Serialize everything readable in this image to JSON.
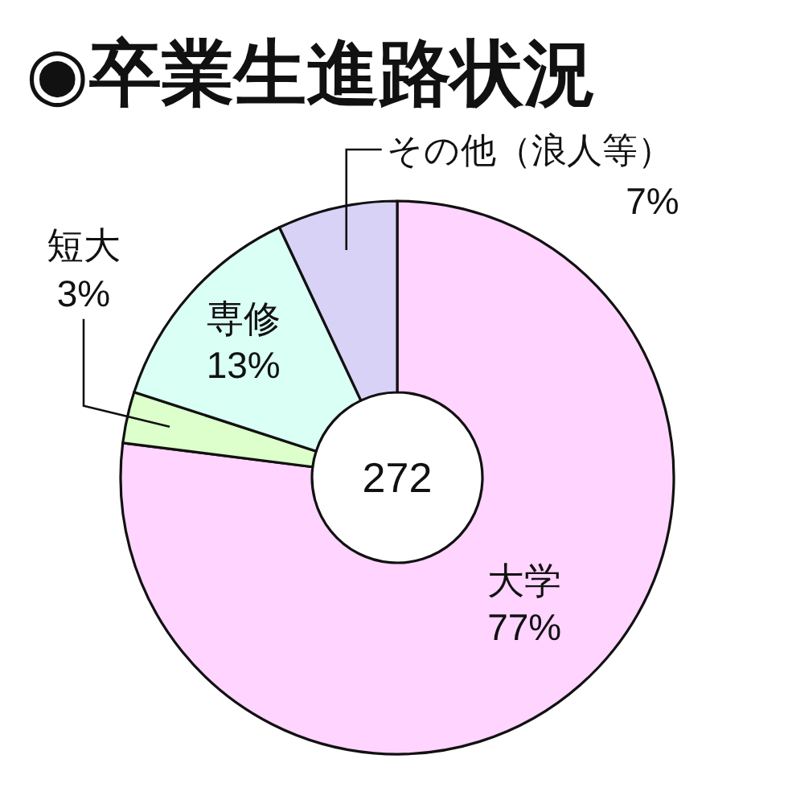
{
  "chart_data": {
    "type": "donut",
    "title": "◉卒業生進路状況",
    "categories": [
      "大学",
      "短大",
      "専修",
      "その他（浪人等）"
    ],
    "values": [
      77,
      3,
      13,
      7
    ],
    "colors": [
      "#ffd4ff",
      "#dcffcb",
      "#dafff5",
      "#d9d2f7"
    ],
    "value_labels": [
      "77%",
      "3%",
      "13%",
      "7%"
    ],
    "annotations": [
      "272"
    ]
  }
}
